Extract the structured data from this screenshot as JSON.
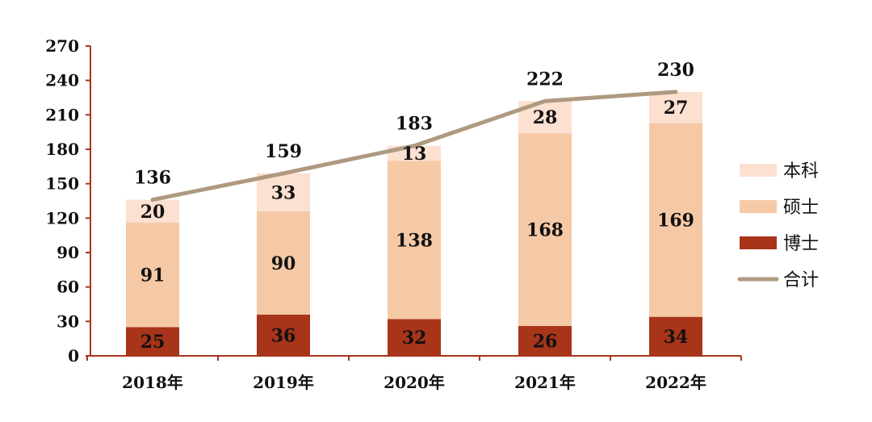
{
  "chart_data": {
    "type": "bar",
    "stacked": true,
    "categories": [
      "2018年",
      "2019年",
      "2020年",
      "2021年",
      "2022年"
    ],
    "series": [
      {
        "name": "博士",
        "values": [
          25,
          36,
          32,
          26,
          34
        ],
        "color": "#a8341a"
      },
      {
        "name": "硕士",
        "values": [
          91,
          90,
          138,
          168,
          169
        ],
        "color": "#f6c9a6"
      },
      {
        "name": "本科",
        "values": [
          20,
          33,
          13,
          28,
          27
        ],
        "color": "#fce0d0"
      }
    ],
    "line": {
      "name": "合计",
      "values": [
        136,
        159,
        183,
        222,
        230
      ],
      "color": "#ae9a80"
    },
    "ylim": [
      0,
      270
    ],
    "yticks": [
      0,
      30,
      60,
      90,
      120,
      150,
      180,
      210,
      240,
      270
    ],
    "axis_color": "#a8341a",
    "grid": false,
    "legend_position": "right",
    "legend_order": [
      "本科",
      "硕士",
      "博士",
      "合计"
    ]
  }
}
